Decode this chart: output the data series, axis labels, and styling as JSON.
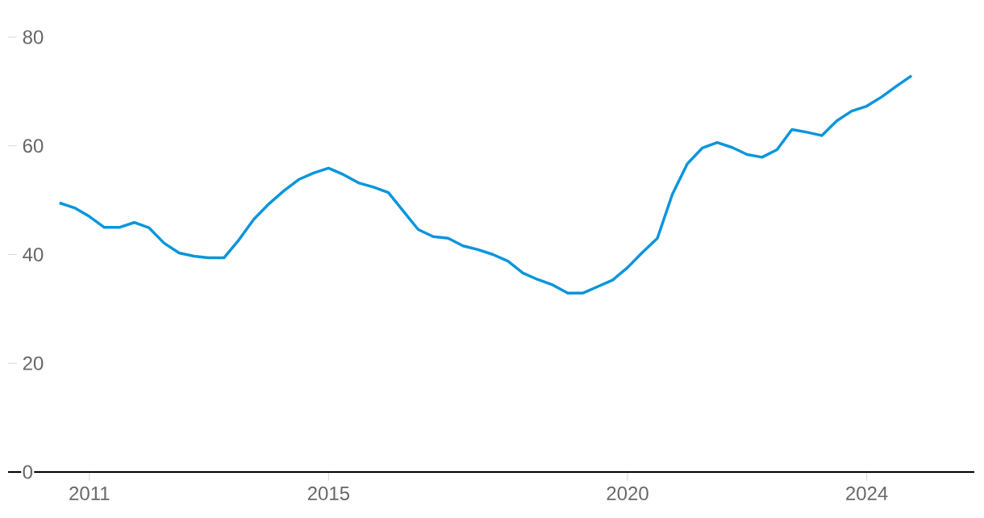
{
  "chart_data": {
    "type": "line",
    "x": [
      2010.5,
      2010.75,
      2011,
      2011.25,
      2011.5,
      2011.75,
      2012,
      2012.25,
      2012.5,
      2012.75,
      2013,
      2013.25,
      2013.5,
      2013.75,
      2014,
      2014.25,
      2014.5,
      2014.75,
      2015,
      2015.25,
      2015.5,
      2015.75,
      2016,
      2016.25,
      2016.5,
      2016.75,
      2017,
      2017.25,
      2017.5,
      2017.75,
      2018,
      2018.25,
      2018.5,
      2018.75,
      2019,
      2019.25,
      2019.5,
      2019.75,
      2020,
      2020.25,
      2020.5,
      2020.75,
      2021,
      2021.25,
      2021.5,
      2021.75,
      2022,
      2022.25,
      2022.5,
      2022.75,
      2023,
      2023.25,
      2023.5,
      2023.75,
      2024,
      2024.25,
      2024.5,
      2024.75
    ],
    "series": [
      {
        "color": "#0a95dc",
        "values": [
          49.5,
          48.6,
          47.0,
          45.0,
          45.0,
          45.9,
          44.9,
          42.1,
          40.3,
          39.7,
          39.4,
          39.4,
          42.7,
          46.5,
          49.3,
          51.7,
          53.8,
          55.0,
          55.9,
          54.7,
          53.2,
          52.4,
          51.4,
          48.0,
          44.6,
          43.3,
          43.0,
          41.6,
          40.9,
          40.0,
          38.8,
          36.6,
          35.4,
          34.4,
          32.9,
          32.9,
          34.1,
          35.3,
          37.6,
          40.4,
          43.0,
          51.1,
          56.7,
          59.6,
          60.6,
          59.7,
          58.4,
          57.9,
          59.3,
          63.0,
          62.5,
          61.9,
          64.6,
          66.4,
          67.3,
          69.0,
          71.0,
          72.9
        ]
      }
    ],
    "xlim": [
      2009.64,
      2025.8
    ],
    "ylim": [
      0,
      80
    ],
    "xticks": [
      2011,
      2015,
      2020,
      2024
    ],
    "yticks": [
      0,
      20,
      40,
      60,
      80
    ],
    "line_style": "solid",
    "marker": "none"
  }
}
